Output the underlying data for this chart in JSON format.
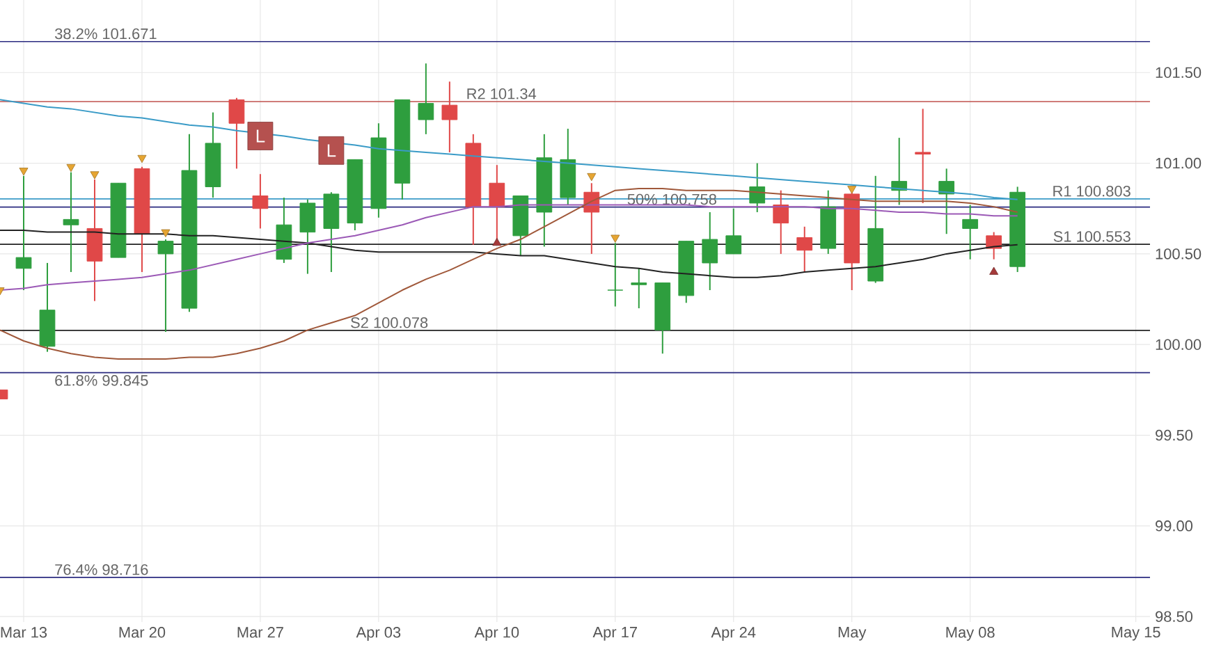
{
  "chart_data": {
    "type": "candlestick",
    "categories": [
      null,
      "Mar 13",
      null,
      null,
      null,
      null,
      "Mar 20",
      null,
      null,
      null,
      null,
      "Mar 27",
      null,
      null,
      null,
      null,
      "Apr 03",
      null,
      null,
      null,
      null,
      "Apr 10",
      null,
      null,
      null,
      null,
      "Apr 17",
      null,
      null,
      null,
      null,
      "Apr 24",
      null,
      null,
      null,
      null,
      "May",
      null,
      null,
      null,
      null,
      "May 08",
      null,
      null,
      null,
      null,
      null,
      null,
      "May 15"
    ],
    "ohlc": [
      [
        99.75,
        99.75,
        99.7,
        99.7
      ],
      [
        100.42,
        100.93,
        100.3,
        100.48
      ],
      [
        99.99,
        100.45,
        99.96,
        100.19
      ],
      [
        100.66,
        100.95,
        100.4,
        100.69
      ],
      [
        100.64,
        100.91,
        100.24,
        100.46
      ],
      [
        100.48,
        100.89,
        100.48,
        100.89
      ],
      [
        100.97,
        100.98,
        100.4,
        100.61
      ],
      [
        100.5,
        100.58,
        100.07,
        100.57
      ],
      [
        100.2,
        101.16,
        100.18,
        100.96
      ],
      [
        100.87,
        101.28,
        100.81,
        101.11
      ],
      [
        101.35,
        101.36,
        100.97,
        101.22
      ],
      [
        100.82,
        100.94,
        100.64,
        100.75
      ],
      [
        100.47,
        100.81,
        100.45,
        100.66
      ],
      [
        100.62,
        100.8,
        100.39,
        100.78
      ],
      [
        100.64,
        100.84,
        100.4,
        100.83
      ],
      [
        100.67,
        101.02,
        100.63,
        101.02
      ],
      [
        100.75,
        101.22,
        100.7,
        101.14
      ],
      [
        100.89,
        101.35,
        100.8,
        101.35
      ],
      [
        101.24,
        101.55,
        101.16,
        101.33
      ],
      [
        101.32,
        101.45,
        101.06,
        101.24
      ],
      [
        101.11,
        101.16,
        100.55,
        100.76
      ],
      [
        100.89,
        100.99,
        100.58,
        100.76
      ],
      [
        100.6,
        100.82,
        100.49,
        100.82
      ],
      [
        100.73,
        101.16,
        100.54,
        101.03
      ],
      [
        100.81,
        101.19,
        100.77,
        101.02
      ],
      [
        100.84,
        100.89,
        100.5,
        100.73
      ],
      [
        100.3,
        100.56,
        100.21,
        100.3
      ],
      [
        100.33,
        100.42,
        100.2,
        100.34
      ],
      [
        100.08,
        100.34,
        99.95,
        100.34
      ],
      [
        100.27,
        100.57,
        100.23,
        100.57
      ],
      [
        100.45,
        100.73,
        100.3,
        100.58
      ],
      [
        100.5,
        100.75,
        100.5,
        100.6
      ],
      [
        100.78,
        101.0,
        100.73,
        100.87
      ],
      [
        100.77,
        100.85,
        100.5,
        100.67
      ],
      [
        100.59,
        100.65,
        100.4,
        100.52
      ],
      [
        100.53,
        100.85,
        100.5,
        100.76
      ],
      [
        100.83,
        100.84,
        100.3,
        100.45
      ],
      [
        100.35,
        100.93,
        100.34,
        100.64
      ],
      [
        100.85,
        101.14,
        100.77,
        100.9
      ],
      [
        101.06,
        101.3,
        100.78,
        101.05
      ],
      [
        100.83,
        100.97,
        100.61,
        100.9
      ],
      [
        100.64,
        100.77,
        100.47,
        100.69
      ],
      [
        100.6,
        100.62,
        100.47,
        100.53
      ],
      [
        100.43,
        100.87,
        100.4,
        100.84
      ],
      null,
      null,
      null,
      null,
      null
    ],
    "colors": [
      "#e04848",
      "#2e9e3e",
      "#2e9e3e",
      "#2e9e3e",
      "#e04848",
      "#2e9e3e",
      "#e04848",
      "#2e9e3e",
      "#2e9e3e",
      "#2e9e3e",
      "#e04848",
      "#e04848",
      "#2e9e3e",
      "#2e9e3e",
      "#2e9e3e",
      "#2e9e3e",
      "#2e9e3e",
      "#2e9e3e",
      "#2e9e3e",
      "#e04848",
      "#e04848",
      "#e04848",
      "#2e9e3e",
      "#2e9e3e",
      "#2e9e3e",
      "#e04848",
      "#2e9e3e",
      "#2e9e3e",
      "#2e9e3e",
      "#2e9e3e",
      "#2e9e3e",
      "#2e9e3e",
      "#2e9e3e",
      "#e04848",
      "#e04848",
      "#2e9e3e",
      "#e04848",
      "#2e9e3e",
      "#2e9e3e",
      "#e04848",
      "#2e9e3e",
      "#2e9e3e",
      "#e04848",
      "#2e9e3e",
      null,
      null,
      null,
      null,
      null
    ],
    "series": [
      {
        "type": "line",
        "color": "#3a9bc7",
        "values": [
          101.35,
          101.33,
          101.31,
          101.3,
          101.28,
          101.26,
          101.25,
          101.23,
          101.21,
          101.2,
          101.18,
          null,
          101.15,
          101.13,
          null,
          101.1,
          101.08,
          101.07,
          101.06,
          101.05,
          101.04,
          101.03,
          101.02,
          101.01,
          101.0,
          100.99,
          100.98,
          100.97,
          100.96,
          100.95,
          100.94,
          100.93,
          100.92,
          100.91,
          100.9,
          100.89,
          100.88,
          100.87,
          100.86,
          100.85,
          100.84,
          100.83,
          100.81,
          100.8,
          null,
          null,
          null,
          null,
          null
        ]
      },
      {
        "type": "line",
        "color": "#222222",
        "values": [
          100.63,
          100.63,
          100.62,
          100.62,
          100.62,
          100.61,
          100.61,
          100.61,
          100.6,
          100.6,
          100.59,
          100.58,
          100.57,
          100.56,
          100.54,
          100.52,
          100.51,
          100.51,
          100.51,
          100.51,
          100.51,
          100.5,
          100.49,
          100.49,
          100.47,
          100.45,
          100.43,
          100.42,
          100.4,
          100.39,
          100.38,
          100.37,
          100.37,
          100.38,
          100.4,
          100.41,
          100.42,
          100.43,
          100.45,
          100.47,
          100.5,
          100.52,
          100.54,
          100.55,
          null,
          null,
          null,
          null,
          null
        ]
      },
      {
        "type": "line",
        "color": "#9b59b6",
        "values": [
          100.3,
          100.31,
          100.33,
          100.34,
          100.35,
          100.36,
          100.37,
          100.39,
          100.41,
          100.44,
          100.47,
          100.5,
          100.53,
          100.56,
          100.58,
          100.6,
          100.63,
          100.66,
          100.7,
          100.73,
          100.76,
          100.76,
          100.77,
          100.77,
          100.77,
          100.77,
          100.77,
          100.77,
          100.77,
          100.77,
          100.76,
          100.76,
          100.76,
          100.76,
          100.76,
          100.75,
          100.75,
          100.74,
          100.73,
          100.73,
          100.72,
          100.72,
          100.71,
          100.71,
          null,
          null,
          null,
          null,
          null
        ]
      },
      {
        "type": "line",
        "color": "#a0583a",
        "values": [
          100.08,
          100.02,
          99.98,
          99.95,
          99.93,
          99.92,
          99.92,
          99.92,
          99.93,
          99.93,
          99.95,
          99.98,
          100.02,
          100.08,
          100.12,
          100.16,
          100.23,
          100.3,
          100.36,
          100.41,
          100.47,
          100.53,
          100.58,
          100.65,
          100.72,
          100.79,
          100.85,
          100.86,
          100.86,
          100.85,
          100.85,
          100.85,
          100.84,
          100.83,
          100.82,
          100.81,
          100.8,
          100.79,
          100.79,
          100.79,
          100.79,
          100.78,
          100.76,
          100.73,
          null,
          null,
          null,
          null,
          null
        ]
      },
      {
        "type": "scatter",
        "color": "#e6a532",
        "marker": "triangle",
        "values": [
          100.3,
          100.96,
          null,
          100.98,
          100.94,
          null,
          101.03,
          100.62,
          null,
          null,
          null,
          null,
          null,
          null,
          null,
          null,
          null,
          null,
          null,
          null,
          null,
          null,
          null,
          null,
          null,
          100.93,
          100.59,
          null,
          null,
          null,
          null,
          null,
          null,
          null,
          null,
          null,
          100.86,
          null,
          null,
          null,
          null,
          null,
          null,
          null,
          null,
          null,
          null,
          null,
          null
        ]
      },
      {
        "type": "scatter",
        "color": "#a53a3a",
        "marker": "triangle",
        "values": [
          null,
          null,
          null,
          null,
          null,
          null,
          null,
          null,
          null,
          null,
          null,
          null,
          null,
          null,
          null,
          null,
          null,
          null,
          null,
          null,
          null,
          100.56,
          null,
          null,
          null,
          null,
          null,
          null,
          null,
          null,
          null,
          null,
          null,
          null,
          null,
          null,
          null,
          null,
          null,
          null,
          null,
          null,
          100.4,
          null,
          null,
          null,
          null,
          null,
          null
        ]
      },
      {
        "type": "scatter",
        "color": "#b5514f",
        "marker": "square",
        "values": [
          null,
          null,
          null,
          null,
          null,
          null,
          null,
          null,
          null,
          null,
          null,
          101.15,
          null,
          null,
          101.07,
          null,
          null,
          null,
          null,
          null,
          null,
          null,
          null,
          null,
          null,
          null,
          null,
          null,
          null,
          null,
          null,
          null,
          null,
          null,
          null,
          null,
          null,
          null,
          null,
          null,
          null,
          null,
          null,
          null,
          null,
          null,
          null,
          null,
          null
        ],
        "value_labels": [
          null,
          null,
          null,
          null,
          null,
          null,
          null,
          null,
          null,
          null,
          null,
          "L",
          null,
          null,
          "L",
          null,
          null,
          null,
          null,
          null,
          null,
          null,
          null,
          null,
          null,
          null,
          null,
          null,
          null,
          null,
          null,
          null,
          null,
          null,
          null,
          null,
          null,
          null,
          null,
          null,
          null,
          null,
          null,
          null,
          null,
          null,
          null,
          null,
          null
        ]
      }
    ],
    "ref_lines": [
      {
        "axis": "y",
        "value": 101.671,
        "label": "38.2% 101.671",
        "color": "#2b2b80"
      },
      {
        "axis": "y",
        "value": 101.34,
        "label": "R2 101.34",
        "color": "#c0504d"
      },
      {
        "axis": "y",
        "value": 100.803,
        "label": "R1 100.803",
        "color": "#3a9bc7"
      },
      {
        "axis": "y",
        "value": 100.758,
        "label": "50% 100.758",
        "color": "#2b2b80"
      },
      {
        "axis": "y",
        "value": 100.553,
        "label": "S1 100.553",
        "color": "#222222"
      },
      {
        "axis": "y",
        "value": 100.078,
        "label": "S2 100.078",
        "color": "#222222"
      },
      {
        "axis": "y",
        "value": 99.845,
        "label": "61.8% 99.845",
        "color": "#2b2b80"
      },
      {
        "axis": "y",
        "value": 98.716,
        "label": "76.4% 98.716",
        "color": "#2b2b80"
      }
    ],
    "ylim": [
      98.47,
      101.9
    ],
    "yticks": [
      {
        "value": 98.5,
        "label": "98.50"
      },
      {
        "value": 99,
        "label": "99.00"
      },
      {
        "value": 99.5,
        "label": "99.50"
      },
      {
        "value": 100,
        "label": "100.00"
      },
      {
        "value": 100.5,
        "label": "100.50"
      },
      {
        "value": 101,
        "label": "101.00"
      },
      {
        "value": 101.5,
        "label": "101.50"
      }
    ],
    "grid": true
  }
}
